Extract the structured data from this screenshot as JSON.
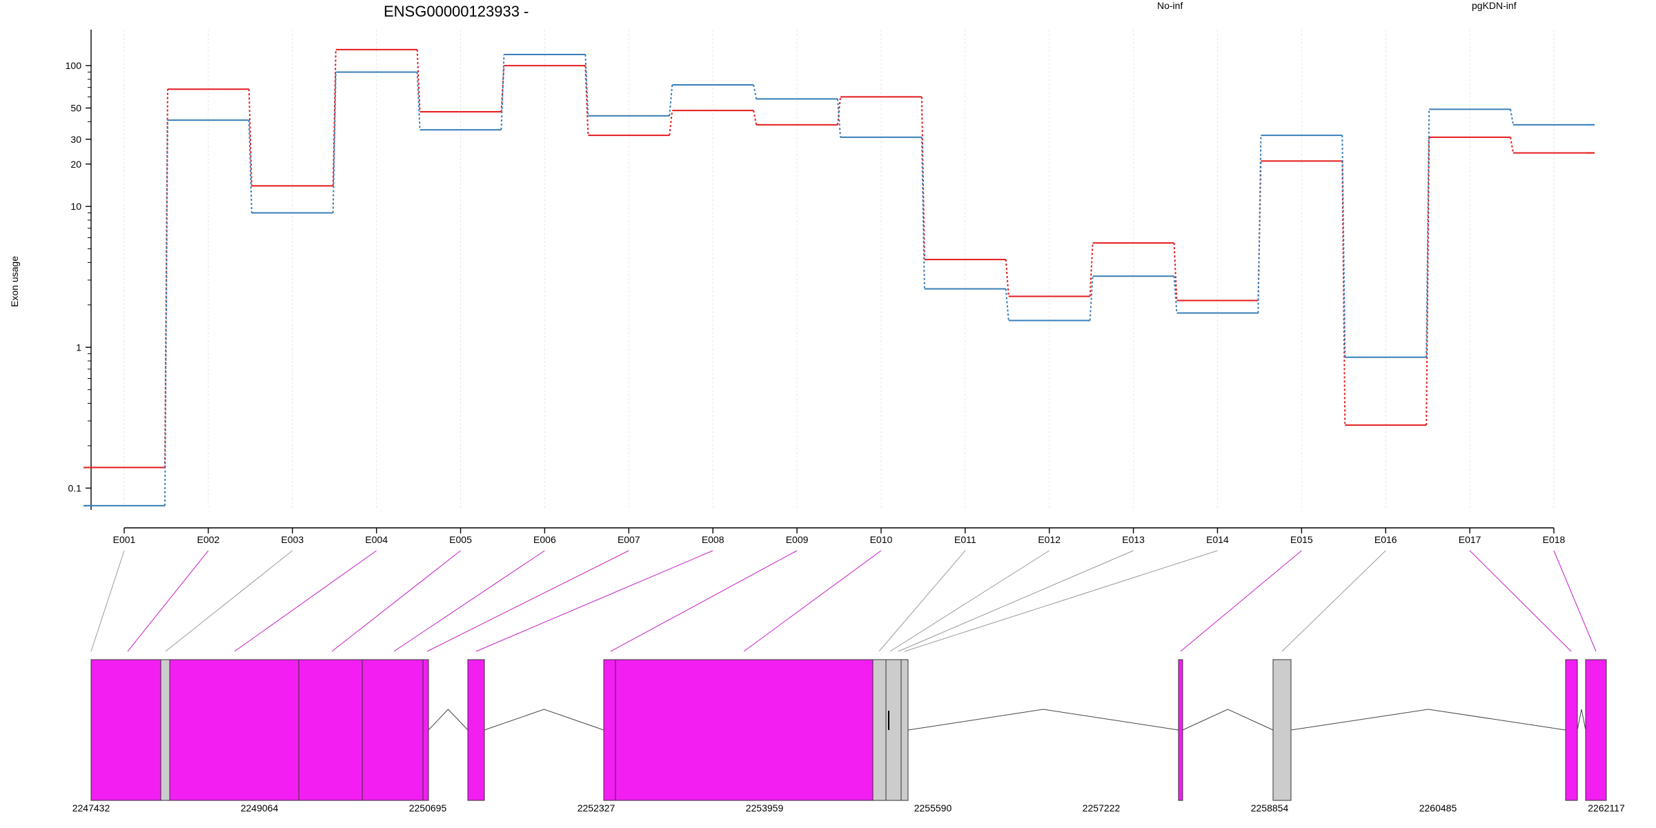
{
  "chart_data": {
    "type": "line",
    "title": "ENSG00000123933 -",
    "ylabel": "Exon usage",
    "yscale": "log",
    "ylim": [
      0.07,
      180
    ],
    "yticks": [
      0.1,
      1,
      10,
      20,
      30,
      50,
      100
    ],
    "categories": [
      "E001",
      "E002",
      "E003",
      "E004",
      "E005",
      "E006",
      "E007",
      "E008",
      "E009",
      "E010",
      "E011",
      "E012",
      "E013",
      "E014",
      "E015",
      "E016",
      "E017",
      "E018"
    ],
    "series": [
      {
        "name": "No-inf",
        "color": "#e41a1c",
        "values": [
          0.14,
          68,
          14,
          130,
          47,
          100,
          32,
          48,
          38,
          60,
          4.2,
          2.3,
          5.5,
          2.15,
          21,
          0.28,
          31,
          24
        ]
      },
      {
        "name": "pgKDN-inf",
        "color": "#377eb8",
        "values": [
          0.075,
          41,
          9,
          90,
          35,
          120,
          44,
          73,
          58,
          31,
          2.6,
          1.55,
          3.2,
          1.75,
          32,
          0.85,
          49,
          38
        ]
      }
    ],
    "gene_model": {
      "xticks": [
        "2247432",
        "2249064",
        "2250695",
        "2252327",
        "2253959",
        "2255590",
        "2257222",
        "2258854",
        "2260485",
        "2262117"
      ]
    }
  }
}
